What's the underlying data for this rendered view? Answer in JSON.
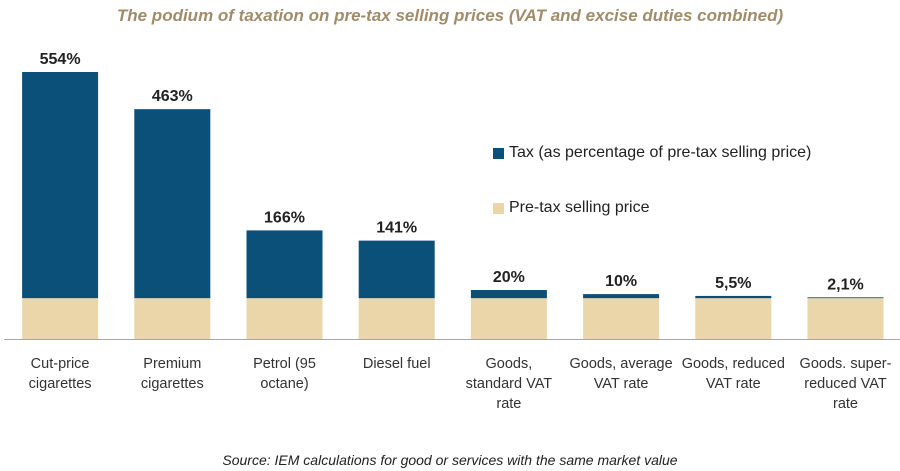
{
  "colors": {
    "tax": "#0b5078",
    "base": "#ead6a8",
    "title": "#a08c6a",
    "axis": "#a6a6a6"
  },
  "chart_data": {
    "type": "bar",
    "stacked": true,
    "title": "The podium of taxation on pre-tax selling prices (VAT and excise duties combined)",
    "source": "Source: IEM calculations for good or services with the same market value",
    "categories": [
      [
        "Cut-price",
        "cigarettes"
      ],
      [
        "Premium",
        "cigarettes"
      ],
      [
        "Petrol (95",
        "octane)"
      ],
      [
        "Diesel fuel"
      ],
      [
        "Goods,",
        "standard VAT",
        "rate"
      ],
      [
        "Goods, average",
        "VAT rate"
      ],
      [
        "Goods, reduced",
        "VAT rate"
      ],
      [
        "Goods. super-",
        "reduced VAT",
        "rate"
      ]
    ],
    "value_labels": [
      "554%",
      "463%",
      "166%",
      "141%",
      "20%",
      "10%",
      "5,5%",
      "2,1%"
    ],
    "series": [
      {
        "name": "Pre-tax selling price",
        "values": [
          100,
          100,
          100,
          100,
          100,
          100,
          100,
          100
        ]
      },
      {
        "name": "Tax (as percentage of pre-tax selling price)",
        "values": [
          554,
          463,
          166,
          141,
          20,
          10,
          5.5,
          2.1
        ]
      }
    ],
    "ylim": [
      0,
      654
    ],
    "legend_position": "right",
    "grid": false
  }
}
